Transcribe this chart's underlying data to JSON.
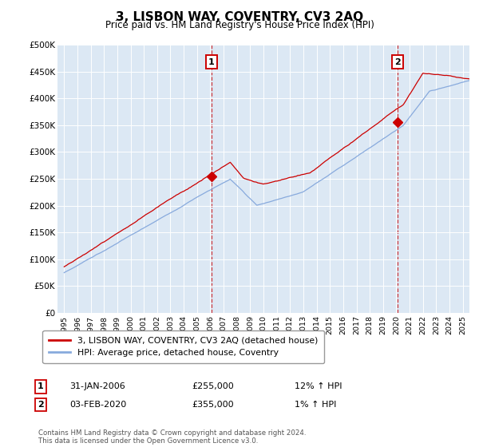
{
  "title": "3, LISBON WAY, COVENTRY, CV3 2AQ",
  "subtitle": "Price paid vs. HM Land Registry's House Price Index (HPI)",
  "ylabel_ticks": [
    "£0",
    "£50K",
    "£100K",
    "£150K",
    "£200K",
    "£250K",
    "£300K",
    "£350K",
    "£400K",
    "£450K",
    "£500K"
  ],
  "ytick_values": [
    0,
    50000,
    100000,
    150000,
    200000,
    250000,
    300000,
    350000,
    400000,
    450000,
    500000
  ],
  "ylim": [
    0,
    500000
  ],
  "xlim_start": 1994.5,
  "xlim_end": 2025.5,
  "plot_bg_color": "#dce8f4",
  "line_color_property": "#cc0000",
  "line_color_hpi": "#88aadd",
  "marker1_x": 2006.08,
  "marker1_y": 255000,
  "marker2_x": 2020.09,
  "marker2_y": 355000,
  "legend_label1": "3, LISBON WAY, COVENTRY, CV3 2AQ (detached house)",
  "legend_label2": "HPI: Average price, detached house, Coventry",
  "table_row1_num": "1",
  "table_row1_date": "31-JAN-2006",
  "table_row1_price": "£255,000",
  "table_row1_hpi": "12% ↑ HPI",
  "table_row2_num": "2",
  "table_row2_date": "03-FEB-2020",
  "table_row2_price": "£355,000",
  "table_row2_hpi": "1% ↑ HPI",
  "copyright": "Contains HM Land Registry data © Crown copyright and database right 2024.\nThis data is licensed under the Open Government Licence v3.0."
}
